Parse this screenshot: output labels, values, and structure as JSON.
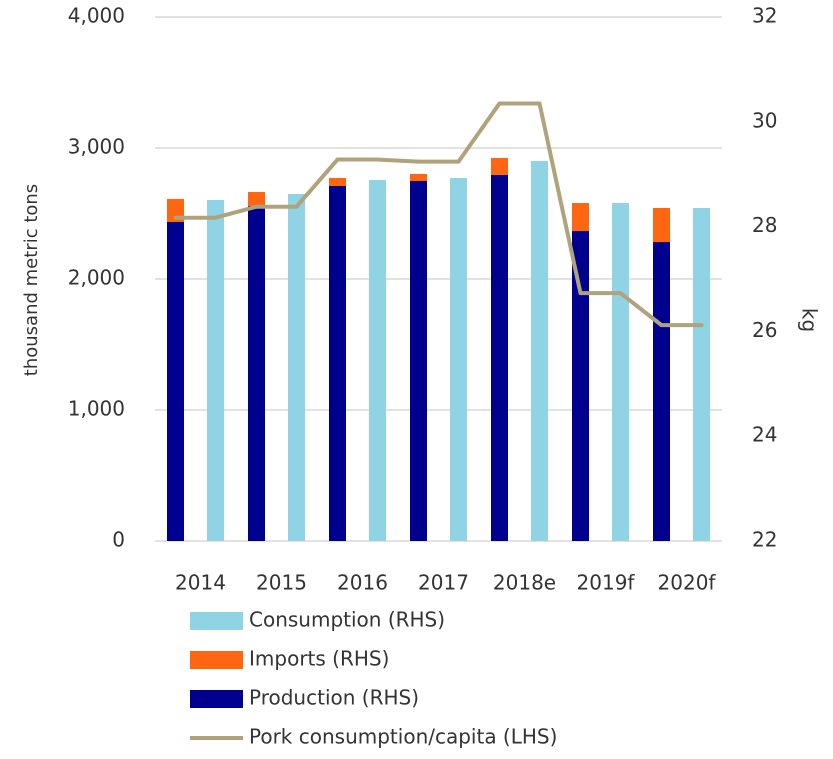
{
  "chart_data": {
    "type": "bar",
    "categories": [
      "2014",
      "2015",
      "2016",
      "2017",
      "2018e",
      "2019f",
      "2020f"
    ],
    "ylabel": "thousand metric tons",
    "y2label": "kg",
    "ylim": [
      0,
      4000
    ],
    "yticks": [
      {
        "value": 0,
        "label": "0"
      },
      {
        "value": 1000,
        "label": "1,000"
      },
      {
        "value": 2000,
        "label": "2,000"
      },
      {
        "value": 3000,
        "label": "3,000"
      },
      {
        "value": 4000,
        "label": "4,000"
      }
    ],
    "y2lim": [
      22,
      32
    ],
    "y2ticks": [
      22,
      24,
      26,
      28,
      30,
      32
    ],
    "grid": true,
    "series": [
      {
        "name": "Consumption (RHS)",
        "color": "#8fd3e4",
        "values": [
          2603,
          2649,
          2756,
          2771,
          2901,
          2580,
          2542
        ]
      },
      {
        "name": "Imports (RHS)",
        "color": "#ff6611",
        "values": [
          176,
          107,
          61,
          54,
          130,
          214,
          260
        ]
      },
      {
        "name": "Production (RHS)",
        "color": "#00008f",
        "values": [
          2435,
          2557,
          2710,
          2748,
          2794,
          2366,
          2282
        ]
      },
      {
        "name": "Pork consumption/capita (LHS)",
        "color": "#b0a27a",
        "axis": "y2",
        "values": [
          28.17,
          28.38,
          29.28,
          29.24,
          30.35,
          26.73,
          26.12
        ]
      }
    ]
  }
}
